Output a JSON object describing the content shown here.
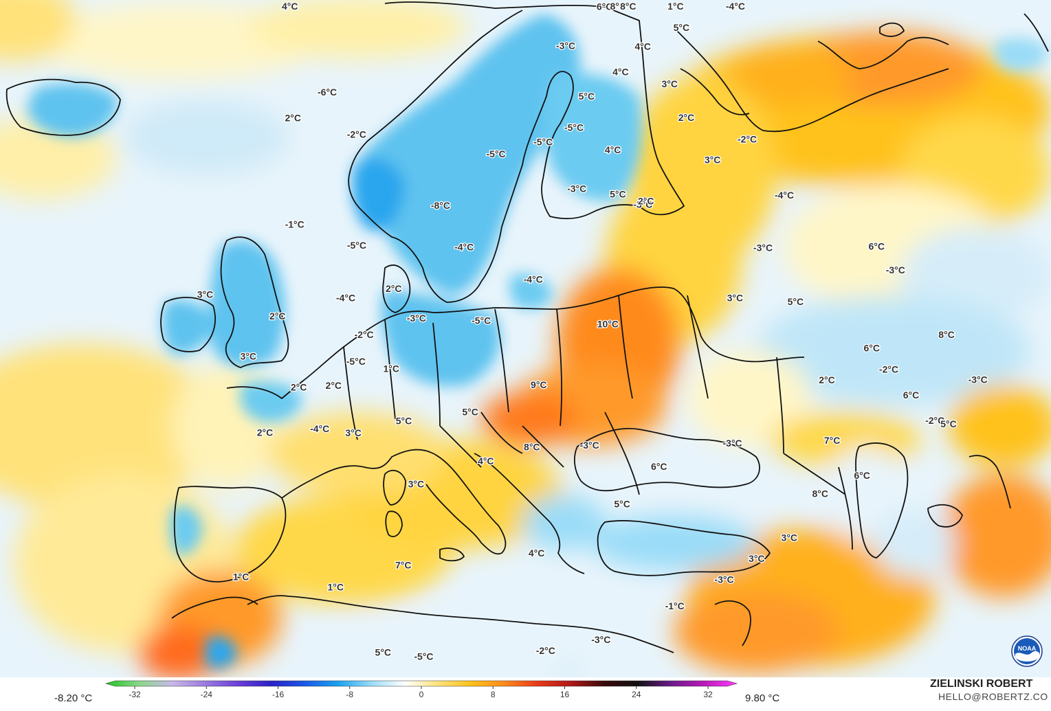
{
  "legend": {
    "min_label": "-8.20 °C",
    "max_label": "9.80 °C",
    "ticks": [
      "-32",
      "-24",
      "-16",
      "-8",
      "0",
      "8",
      "16",
      "24",
      "32"
    ],
    "tick_values": [
      -32,
      -24,
      -16,
      -8,
      0,
      8,
      16,
      24,
      32
    ],
    "range": [
      -32,
      32
    ],
    "colors": [
      "#22c322",
      "#8ad88a",
      "#c8b8e8",
      "#9a7ae0",
      "#6a3ed8",
      "#2a22c8",
      "#1a5ae8",
      "#1aa2f0",
      "#9adcf8",
      "#ffffff",
      "#ffe27a",
      "#ffc21a",
      "#ff8a1a",
      "#e83a1a",
      "#b01818",
      "#3a0a0a",
      "#111111",
      "#6a1a8a",
      "#b81ab8",
      "#ff3aff"
    ]
  },
  "credit": {
    "name": "ZIELINSKI ROBERT",
    "email": "HELLO@ROBERTZ.CO"
  },
  "logo": {
    "icon": "noaa-logo-icon",
    "text": "NOAA"
  },
  "palette": {
    "ocean": "#ffffff",
    "light_blue": "#e6f3fb",
    "mid_blue": "#b3e2f6",
    "blue": "#5ec3ef",
    "deep_blue": "#2aa6ee",
    "yellow_pale": "#fff6c8",
    "yellow": "#ffe07a",
    "amber": "#ffc21a",
    "orange": "#ff9a2a",
    "red_orange": "#ff6a1a",
    "coast": "#111111"
  },
  "map_labels": [
    {
      "text": "4°C",
      "lon": -43.6,
      "lat": 71.6
    },
    {
      "text": "-6°C",
      "lon": -18.2,
      "lat": 64.7
    },
    {
      "text": "2°C",
      "lon": -21.1,
      "lat": 61.5
    },
    {
      "text": "-2°C",
      "lon": -10.0,
      "lat": 62.7
    },
    {
      "text": "-8°C",
      "lon": 6.9,
      "lat": 59.1
    },
    {
      "text": "-5°C",
      "lon": 15.2,
      "lat": 63.8
    },
    {
      "text": "-5°C",
      "lon": 23.9,
      "lat": 64.8
    },
    {
      "text": "-5°C",
      "lon": 30.0,
      "lat": 65.7
    },
    {
      "text": "-3°C",
      "lon": 29.1,
      "lat": 60.8
    },
    {
      "text": "-3°C",
      "lon": 30.7,
      "lat": 72.1
    },
    {
      "text": "-3°C",
      "lon": 39.1,
      "lat": 58.5
    },
    {
      "text": "-4°C",
      "lon": 11.4,
      "lat": 56.0
    },
    {
      "text": "-4°C",
      "lon": 21.5,
      "lat": 53.6
    },
    {
      "text": "-5°C",
      "lon": 14.7,
      "lat": 50.1
    },
    {
      "text": "-5°C",
      "lon": -3.8,
      "lat": 54.2
    },
    {
      "text": "-4°C",
      "lon": -3.0,
      "lat": 49.8
    },
    {
      "text": "-3°C",
      "lon": 6.4,
      "lat": 49.6
    },
    {
      "text": "2°C",
      "lon": 2.7,
      "lat": 51.6
    },
    {
      "text": "-2°C",
      "lon": 0.5,
      "lat": 47.3
    },
    {
      "text": "-5°C",
      "lon": 0.4,
      "lat": 45.0
    },
    {
      "text": "1°C",
      "lon": 4.6,
      "lat": 45.1
    },
    {
      "text": "-1°C",
      "lon": -13.0,
      "lat": 53.9
    },
    {
      "text": "2°C",
      "lon": -10.1,
      "lat": 46.4
    },
    {
      "text": "3°C",
      "lon": -18.9,
      "lat": 45.3
    },
    {
      "text": "3°C",
      "lon": -11.3,
      "lat": 42.4
    },
    {
      "text": "2°C",
      "lon": -4.9,
      "lat": 41.6
    },
    {
      "text": "2°C",
      "lon": -1.3,
      "lat": 42.6
    },
    {
      "text": "-4°C",
      "lon": -1.4,
      "lat": 38.9
    },
    {
      "text": "3°C",
      "lon": 2.1,
      "lat": 39.3
    },
    {
      "text": "2°C",
      "lon": -6.6,
      "lat": 37.2
    },
    {
      "text": "5°C",
      "lon": 7.1,
      "lat": 41.1
    },
    {
      "text": "5°C",
      "lon": 14.2,
      "lat": 42.5
    },
    {
      "text": "3°C",
      "lon": 9.4,
      "lat": 36.2
    },
    {
      "text": "4°C",
      "lon": 16.2,
      "lat": 38.6
    },
    {
      "text": "8°C",
      "lon": 21.0,
      "lat": 39.8
    },
    {
      "text": "9°C",
      "lon": 21.9,
      "lat": 44.9
    },
    {
      "text": "10°C",
      "lon": 30.9,
      "lat": 49.4
    },
    {
      "text": "-3°C",
      "lon": 27.1,
      "lat": 39.7
    },
    {
      "text": "6°C",
      "lon": 33.9,
      "lat": 37.2
    },
    {
      "text": "5°C",
      "lon": 29.7,
      "lat": 34.7
    },
    {
      "text": "-3°C",
      "lon": 41.7,
      "lat": 37.6
    },
    {
      "text": "4°C",
      "lon": 21.3,
      "lat": 31.3
    },
    {
      "text": "7°C",
      "lon": 9.3,
      "lat": 29.7
    },
    {
      "text": "1°C",
      "lon": 3.8,
      "lat": 27.1
    },
    {
      "text": "1°C",
      "lon": -4.2,
      "lat": 25.9
    },
    {
      "text": "5°C",
      "lon": 8.7,
      "lat": 22.9
    },
    {
      "text": "-5°C",
      "lon": 12.0,
      "lat": 23.0
    },
    {
      "text": "-2°C",
      "lon": 21.9,
      "lat": 23.8
    },
    {
      "text": "-3°C",
      "lon": 26.5,
      "lat": 24.4
    },
    {
      "text": "-1°C",
      "lon": 33.0,
      "lat": 26.2
    },
    {
      "text": "-3°C",
      "lon": 37.6,
      "lat": 27.4
    },
    {
      "text": "3°C",
      "lon": 40.8,
      "lat": 28.3
    },
    {
      "text": "3°C",
      "lon": 44.1,
      "lat": 29.1
    },
    {
      "text": "8°C",
      "lon": 48.1,
      "lat": 31.5
    },
    {
      "text": "6°C",
      "lon": 52.3,
      "lat": 31.5
    },
    {
      "text": "7°C",
      "lon": 51.1,
      "lat": 35.0
    },
    {
      "text": "2°C",
      "lon": 53.2,
      "lat": 39.6
    },
    {
      "text": "6°C",
      "lon": 59.0,
      "lat": 40.2
    },
    {
      "text": "-2°C",
      "lon": 59.4,
      "lat": 38.0
    },
    {
      "text": "6°C",
      "lon": 60.0,
      "lat": 35.3
    },
    {
      "text": "-2°C",
      "lon": 60.7,
      "lat": 32.6
    },
    {
      "text": "5°C",
      "lon": 61.6,
      "lat": 31.8
    },
    {
      "text": "8°C",
      "lon": 66.3,
      "lat": 37.8
    },
    {
      "text": "-3°C",
      "lon": 66.2,
      "lat": 33.4
    },
    {
      "text": "-3°C",
      "lon": 65.9,
      "lat": 44.5
    },
    {
      "text": "6°C",
      "lon": 65.7,
      "lat": 47.0
    },
    {
      "text": "5°C",
      "lon": 53.9,
      "lat": 46.5
    },
    {
      "text": "3°C",
      "lon": 47.3,
      "lat": 48.8
    },
    {
      "text": "-3°C",
      "lon": 53.2,
      "lat": 51.7
    },
    {
      "text": "-4°C",
      "lon": 59.2,
      "lat": 54.7
    },
    {
      "text": "-2°C",
      "lon": 58.6,
      "lat": 60.2
    },
    {
      "text": "3°C",
      "lon": 52.0,
      "lat": 60.0
    },
    {
      "text": "2°C",
      "lon": 39.7,
      "lat": 58.7
    },
    {
      "text": "5°C",
      "lon": 35.6,
      "lat": 59.8
    },
    {
      "text": "4°C",
      "lon": 36.4,
      "lat": 63.4
    },
    {
      "text": "2°C",
      "lon": 50.9,
      "lat": 64.0
    },
    {
      "text": "3°C",
      "lon": 50.6,
      "lat": 67.0
    },
    {
      "text": "5°C",
      "lon": 58.3,
      "lat": 70.5
    },
    {
      "text": "4°C",
      "lon": 48.4,
      "lat": 70.5
    },
    {
      "text": "4°C",
      "lon": 41.8,
      "lat": 69.2
    },
    {
      "text": "6°C",
      "lon": 42.8,
      "lat": 74.3
    },
    {
      "text": "8°C",
      "lon": 48.5,
      "lat": 75.5
    },
    {
      "text": "8°C",
      "lon": 55.2,
      "lat": 77.2
    },
    {
      "text": "5°C",
      "lon": 33.5,
      "lat": 68.0
    },
    {
      "text": "1°C",
      "lon": 84.9,
      "lat": 79.4
    },
    {
      "text": "-4°C",
      "lon": 107.0,
      "lat": 77.2
    }
  ]
}
